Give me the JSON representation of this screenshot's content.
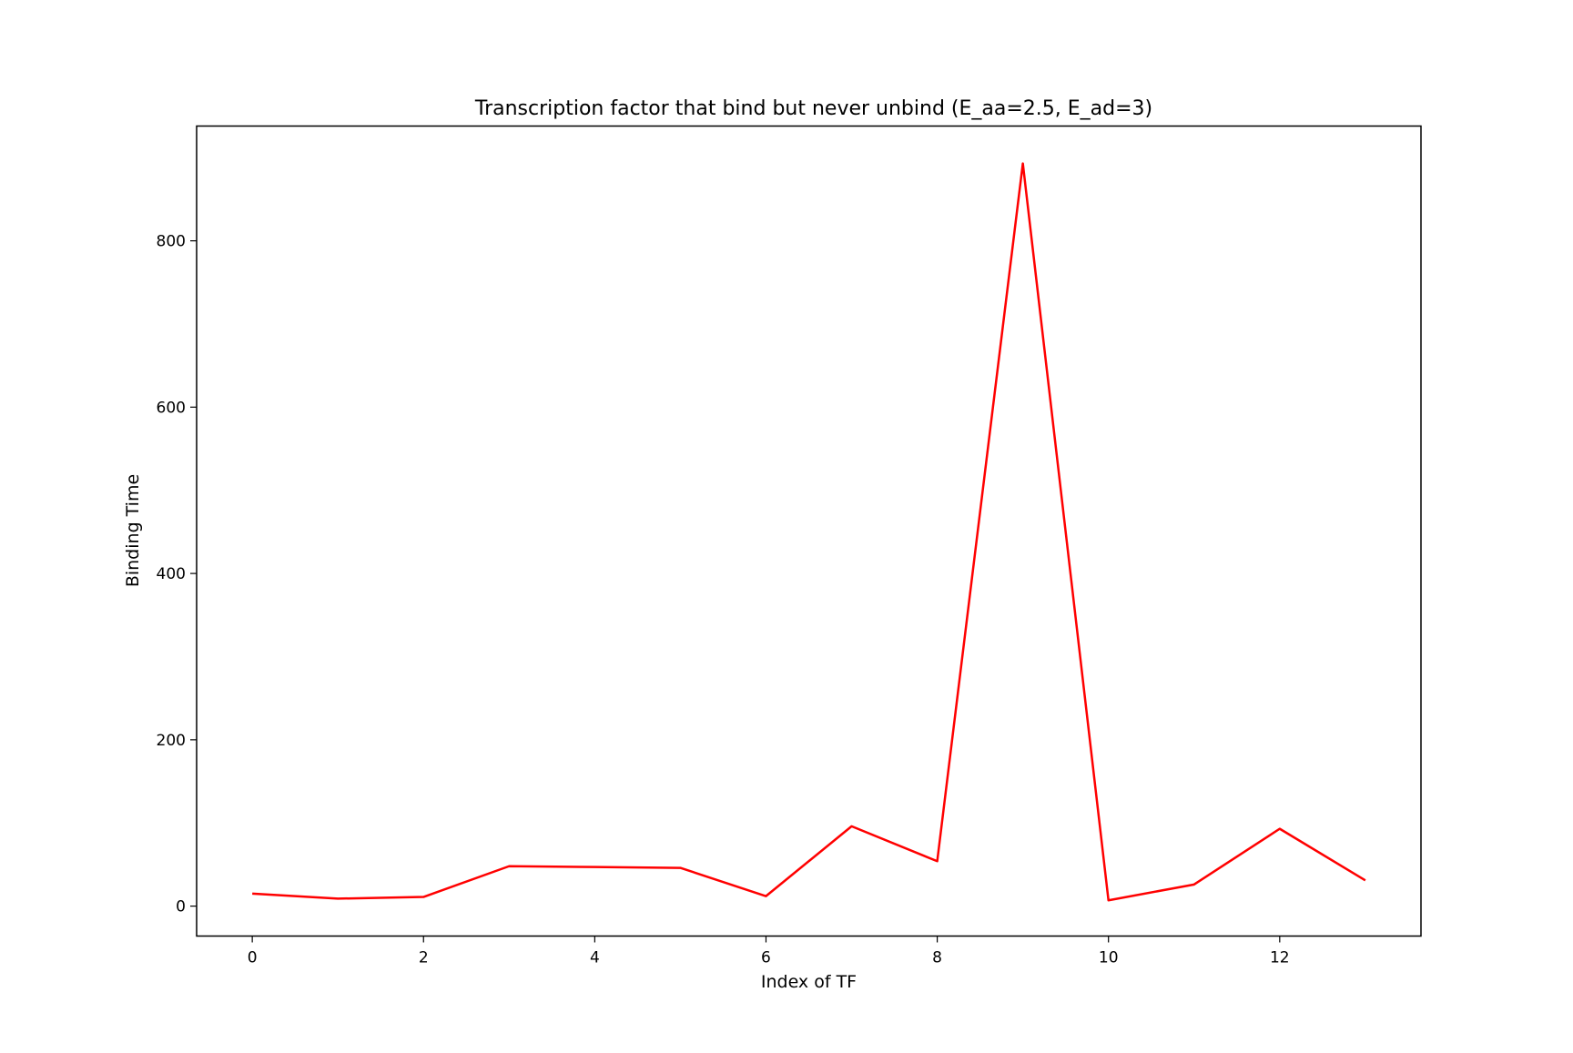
{
  "chart_data": {
    "type": "line",
    "title": "Transcription factor that bind but never unbind (E_aa=2.5, E_ad=3)",
    "xlabel": "Index of TF",
    "ylabel": "Binding Time",
    "x": [
      0,
      1,
      2,
      3,
      4,
      5,
      6,
      7,
      8,
      9,
      10,
      11,
      12,
      13
    ],
    "series": [
      {
        "color": "#ff0000",
        "values": [
          15,
          9,
          11,
          48,
          47,
          46,
          12,
          96,
          54,
          893,
          7,
          26,
          93,
          31
        ]
      }
    ],
    "xlim": [
      -0.65,
      13.65
    ],
    "ylim": [
      -36,
      938
    ],
    "xticks": [
      0,
      2,
      4,
      6,
      8,
      10,
      12
    ],
    "yticks": [
      0,
      200,
      400,
      600,
      800
    ],
    "grid": false,
    "legend": "none"
  }
}
